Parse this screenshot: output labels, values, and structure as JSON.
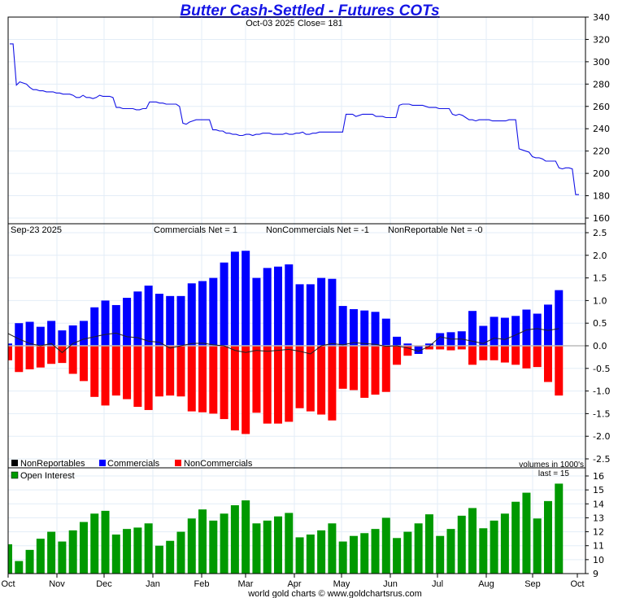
{
  "chart_data": [
    {
      "type": "line",
      "title": "Butter Cash-Settled - Futures COTs",
      "subtitle": "Oct-03  2025   Close= 181",
      "ylim": [
        160,
        340
      ],
      "yticks": [
        "340",
        "320",
        "300",
        "280",
        "260",
        "240",
        "220",
        "200",
        "180",
        "160"
      ],
      "series": [
        {
          "name": "Price",
          "color": "#1414e6",
          "values": [
            316,
            316,
            279,
            282,
            281,
            280,
            277,
            275,
            275,
            274,
            274,
            273,
            273,
            273,
            272,
            272,
            271,
            271,
            271,
            270,
            268,
            268,
            270,
            268,
            268,
            267,
            268,
            270,
            269,
            269,
            269,
            268,
            259,
            259,
            258,
            258,
            258,
            258,
            257,
            257,
            258,
            258,
            264,
            264,
            264,
            263,
            263,
            262,
            262,
            262,
            262,
            260,
            245,
            244,
            246,
            247,
            248,
            248,
            248,
            248,
            248,
            239,
            239,
            238,
            238,
            236,
            236,
            235,
            235,
            234,
            234,
            235,
            235,
            234,
            235,
            235,
            236,
            236,
            236,
            235,
            235,
            235,
            235,
            236,
            235,
            235,
            236,
            236,
            237,
            235,
            235,
            236,
            236,
            237,
            237,
            237,
            237,
            237,
            237,
            237,
            237,
            253,
            253,
            253,
            251,
            252,
            253,
            253,
            253,
            253,
            251,
            251,
            251,
            250,
            250,
            250,
            250,
            261,
            262,
            262,
            262,
            261,
            261,
            261,
            261,
            260,
            259,
            259,
            259,
            258,
            258,
            258,
            258,
            253,
            252,
            253,
            252,
            250,
            248,
            248,
            247,
            248,
            248,
            248,
            248,
            247,
            247,
            247,
            247,
            247,
            248,
            248,
            248,
            222,
            221,
            220,
            219,
            215,
            214,
            214,
            213,
            211,
            211,
            211,
            211,
            205,
            204,
            205,
            205,
            204,
            181,
            181
          ]
        }
      ]
    },
    {
      "type": "bar",
      "title": "Sep-23  2025",
      "annotations": [
        "Commercials Net = 1",
        "NonCommercials Net = -1",
        "NonReportable Net = -0"
      ],
      "ylim": [
        -2.5,
        2.5
      ],
      "yticks": [
        "2.5",
        "2.0",
        "1.5",
        "1.0",
        "0.5",
        "0.0",
        "-0.5",
        "-1.0",
        "-1.5",
        "-2.0",
        "-2.5"
      ],
      "legend": [
        "NonReportables",
        "Commercials",
        "NonCommercials"
      ],
      "series": [
        {
          "name": "Commercials",
          "color": "#0000ff",
          "values": [
            0.05,
            0.5,
            0.53,
            0.42,
            0.55,
            0.34,
            0.45,
            0.55,
            0.85,
            1.0,
            0.9,
            1.06,
            1.2,
            1.33,
            1.15,
            1.1,
            1.1,
            1.38,
            1.43,
            1.5,
            1.84,
            2.08,
            2.1,
            1.5,
            1.72,
            1.75,
            1.8,
            1.36,
            1.36,
            1.5,
            1.48,
            0.88,
            0.81,
            0.78,
            0.75,
            0.6,
            0.2,
            0.05,
            -0.18,
            0.05,
            0.28,
            0.3,
            0.32,
            0.77,
            0.44,
            0.64,
            0.62,
            0.66,
            0.8,
            0.71,
            0.91,
            1.23
          ]
        },
        {
          "name": "NonCommercials",
          "color": "#ff0000",
          "values": [
            -0.32,
            -0.58,
            -0.52,
            -0.48,
            -0.4,
            -0.38,
            -0.62,
            -0.78,
            -1.13,
            -1.32,
            -1.1,
            -1.18,
            -1.35,
            -1.42,
            -1.12,
            -1.1,
            -1.12,
            -1.45,
            -1.47,
            -1.5,
            -1.62,
            -1.87,
            -1.95,
            -1.48,
            -1.72,
            -1.72,
            -1.68,
            -1.38,
            -1.45,
            -1.52,
            -1.65,
            -0.95,
            -0.98,
            -1.15,
            -1.08,
            -1.02,
            -0.42,
            -0.22,
            0.0,
            -0.08,
            -0.08,
            -0.1,
            -0.08,
            -0.42,
            -0.32,
            -0.32,
            -0.37,
            -0.42,
            -0.5,
            -0.47,
            -0.8,
            -1.1
          ]
        },
        {
          "name": "NonReportables",
          "color": "#000000",
          "values": [
            0.27,
            0.15,
            0.05,
            0.0,
            0.05,
            -0.15,
            0.05,
            0.15,
            0.2,
            0.25,
            0.28,
            0.2,
            0.18,
            0.1,
            0.08,
            -0.05,
            0.0,
            0.05,
            0.06,
            0.02,
            0.0,
            -0.1,
            -0.15,
            -0.1,
            -0.12,
            -0.1,
            -0.08,
            -0.12,
            -0.18,
            0.0,
            0.05,
            0.02,
            0.07,
            0.05,
            0.03,
            -0.01,
            0.0,
            -0.05,
            -0.12,
            -0.01,
            0.2,
            0.15,
            0.15,
            0.1,
            0.05,
            0.17,
            0.14,
            0.24,
            0.35,
            0.38,
            0.34,
            0.38
          ]
        }
      ]
    },
    {
      "type": "bar",
      "title": "Open Interest",
      "note": "volumes in 1000's",
      "last": "last = 15",
      "ylim": [
        9,
        16.5
      ],
      "yticks": [
        "16",
        "15",
        "14",
        "13",
        "12",
        "11",
        "10",
        "9"
      ],
      "series": [
        {
          "name": "Open Interest",
          "color": "#009900",
          "values": [
            11.1,
            9.9,
            10.7,
            11.5,
            12.0,
            11.3,
            12.1,
            12.7,
            13.3,
            13.5,
            11.8,
            12.2,
            12.3,
            12.6,
            11.0,
            11.35,
            12.0,
            12.95,
            13.6,
            12.8,
            13.3,
            13.9,
            14.25,
            12.6,
            12.8,
            13.1,
            13.35,
            11.6,
            11.8,
            12.1,
            12.6,
            11.3,
            11.7,
            11.9,
            12.2,
            13.0,
            11.55,
            12.0,
            12.6,
            13.25,
            11.7,
            12.2,
            13.15,
            13.7,
            12.25,
            12.8,
            13.3,
            14.15,
            14.8,
            12.95,
            14.2,
            15.45
          ]
        }
      ]
    }
  ],
  "xaxis": {
    "labels": [
      "Oct",
      "Nov",
      "Dec",
      "Jan",
      "Feb",
      "Mar",
      "Apr",
      "May",
      "Jun",
      "Jul",
      "Aug",
      "Sep",
      "Oct"
    ]
  },
  "footer": "world gold charts © www.goldchartsrus.com"
}
